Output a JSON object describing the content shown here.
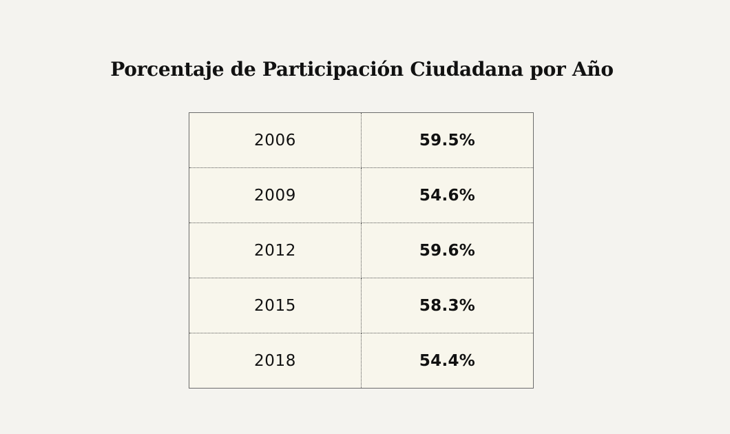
{
  "chart_data": {
    "type": "table",
    "title": "Porcentaje de Participación Ciudadana por Año",
    "rows": [
      {
        "year": "2006",
        "value": "59.5%"
      },
      {
        "year": "2009",
        "value": "54.6%"
      },
      {
        "year": "2012",
        "value": "59.6%"
      },
      {
        "year": "2015",
        "value": "58.3%"
      },
      {
        "year": "2018",
        "value": "54.4%"
      }
    ]
  }
}
